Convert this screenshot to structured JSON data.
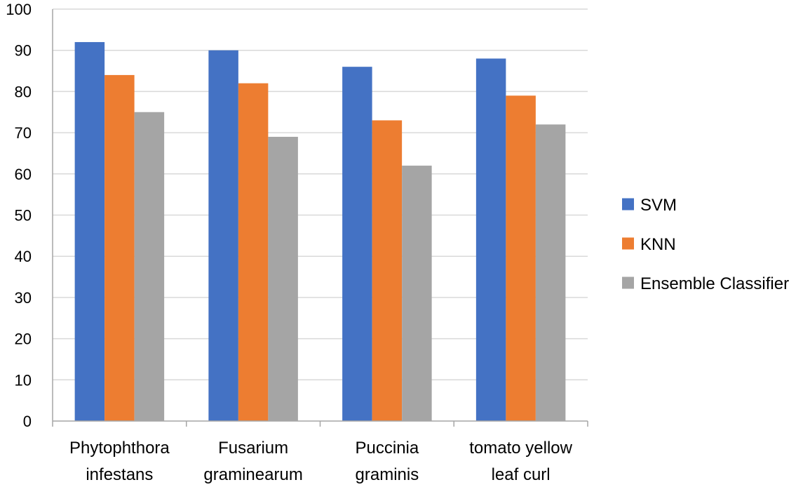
{
  "chart_data": {
    "type": "bar",
    "title": "",
    "xlabel": "",
    "ylabel": "",
    "ylim": [
      0,
      100
    ],
    "ytick_step": 10,
    "grid": true,
    "legend_position": "right",
    "categories": [
      [
        "Phytophthora",
        "infestans"
      ],
      [
        "Fusarium",
        "graminearum"
      ],
      [
        "Puccinia",
        "graminis"
      ],
      [
        "tomato yellow",
        "leaf curl"
      ]
    ],
    "series": [
      {
        "name": "SVM",
        "color": "#4472c4",
        "values": [
          92,
          90,
          86,
          88
        ]
      },
      {
        "name": "KNN",
        "color": "#ed7d31",
        "values": [
          84,
          82,
          73,
          79
        ]
      },
      {
        "name": "Ensemble Classifier",
        "color": "#a5a5a5",
        "values": [
          75,
          69,
          62,
          72
        ]
      }
    ]
  }
}
